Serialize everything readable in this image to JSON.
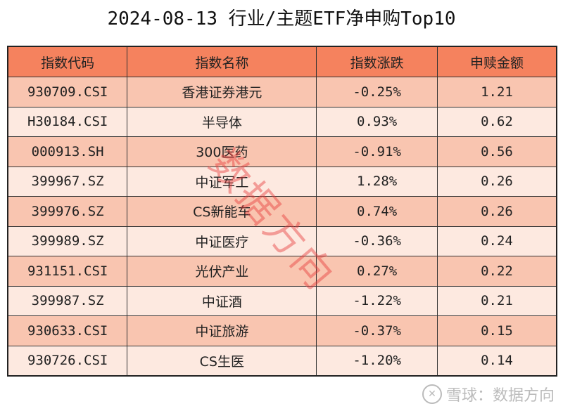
{
  "title": "2024-08-13 行业/主题ETF净申购Top10",
  "watermark": "数据方向",
  "footer": {
    "logo_icon": "snowball-logo-icon",
    "text": "雪球：数据方向"
  },
  "colors": {
    "header": "#F5825E",
    "row_odd": "#F9C5B0",
    "row_even": "#FDE9E0"
  },
  "chart_data": {
    "type": "table",
    "columns": [
      "指数代码",
      "指数名称",
      "指数涨跌",
      "申赎金额"
    ],
    "rows": [
      [
        "930709.CSI",
        "香港证券港元",
        "-0.25%",
        "1.21"
      ],
      [
        "H30184.CSI",
        "半导体",
        "0.93%",
        "0.62"
      ],
      [
        "000913.SH",
        "300医药",
        "-0.91%",
        "0.56"
      ],
      [
        "399967.SZ",
        "中证军工",
        "1.28%",
        "0.26"
      ],
      [
        "399976.SZ",
        "CS新能车",
        "0.74%",
        "0.26"
      ],
      [
        "399989.SZ",
        "中证医疗",
        "-0.36%",
        "0.24"
      ],
      [
        "931151.CSI",
        "光伏产业",
        "0.27%",
        "0.22"
      ],
      [
        "399987.SZ",
        "中证酒",
        "-1.22%",
        "0.21"
      ],
      [
        "930633.CSI",
        "中证旅游",
        "-0.37%",
        "0.15"
      ],
      [
        "930726.CSI",
        "CS生医",
        "-1.20%",
        "0.14"
      ]
    ]
  }
}
